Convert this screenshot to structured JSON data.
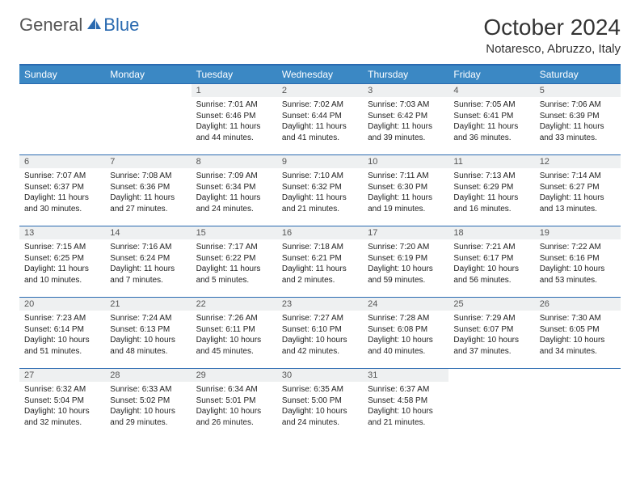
{
  "brand": {
    "word1": "General",
    "word2": "Blue"
  },
  "title": {
    "month": "October 2024",
    "location": "Notaresco, Abruzzo, Italy"
  },
  "colors": {
    "header_bg": "#3b88c4",
    "header_border": "#2a6ab0",
    "row_border": "#2a6ab0",
    "daynum_bg": "#eef0f1",
    "brand_blue": "#2a6ab0"
  },
  "weekdays": [
    "Sunday",
    "Monday",
    "Tuesday",
    "Wednesday",
    "Thursday",
    "Friday",
    "Saturday"
  ],
  "weeks": [
    [
      {
        "n": "",
        "sr": "",
        "ss": "",
        "dl": ""
      },
      {
        "n": "",
        "sr": "",
        "ss": "",
        "dl": ""
      },
      {
        "n": "1",
        "sr": "Sunrise: 7:01 AM",
        "ss": "Sunset: 6:46 PM",
        "dl": "Daylight: 11 hours and 44 minutes."
      },
      {
        "n": "2",
        "sr": "Sunrise: 7:02 AM",
        "ss": "Sunset: 6:44 PM",
        "dl": "Daylight: 11 hours and 41 minutes."
      },
      {
        "n": "3",
        "sr": "Sunrise: 7:03 AM",
        "ss": "Sunset: 6:42 PM",
        "dl": "Daylight: 11 hours and 39 minutes."
      },
      {
        "n": "4",
        "sr": "Sunrise: 7:05 AM",
        "ss": "Sunset: 6:41 PM",
        "dl": "Daylight: 11 hours and 36 minutes."
      },
      {
        "n": "5",
        "sr": "Sunrise: 7:06 AM",
        "ss": "Sunset: 6:39 PM",
        "dl": "Daylight: 11 hours and 33 minutes."
      }
    ],
    [
      {
        "n": "6",
        "sr": "Sunrise: 7:07 AM",
        "ss": "Sunset: 6:37 PM",
        "dl": "Daylight: 11 hours and 30 minutes."
      },
      {
        "n": "7",
        "sr": "Sunrise: 7:08 AM",
        "ss": "Sunset: 6:36 PM",
        "dl": "Daylight: 11 hours and 27 minutes."
      },
      {
        "n": "8",
        "sr": "Sunrise: 7:09 AM",
        "ss": "Sunset: 6:34 PM",
        "dl": "Daylight: 11 hours and 24 minutes."
      },
      {
        "n": "9",
        "sr": "Sunrise: 7:10 AM",
        "ss": "Sunset: 6:32 PM",
        "dl": "Daylight: 11 hours and 21 minutes."
      },
      {
        "n": "10",
        "sr": "Sunrise: 7:11 AM",
        "ss": "Sunset: 6:30 PM",
        "dl": "Daylight: 11 hours and 19 minutes."
      },
      {
        "n": "11",
        "sr": "Sunrise: 7:13 AM",
        "ss": "Sunset: 6:29 PM",
        "dl": "Daylight: 11 hours and 16 minutes."
      },
      {
        "n": "12",
        "sr": "Sunrise: 7:14 AM",
        "ss": "Sunset: 6:27 PM",
        "dl": "Daylight: 11 hours and 13 minutes."
      }
    ],
    [
      {
        "n": "13",
        "sr": "Sunrise: 7:15 AM",
        "ss": "Sunset: 6:25 PM",
        "dl": "Daylight: 11 hours and 10 minutes."
      },
      {
        "n": "14",
        "sr": "Sunrise: 7:16 AM",
        "ss": "Sunset: 6:24 PM",
        "dl": "Daylight: 11 hours and 7 minutes."
      },
      {
        "n": "15",
        "sr": "Sunrise: 7:17 AM",
        "ss": "Sunset: 6:22 PM",
        "dl": "Daylight: 11 hours and 5 minutes."
      },
      {
        "n": "16",
        "sr": "Sunrise: 7:18 AM",
        "ss": "Sunset: 6:21 PM",
        "dl": "Daylight: 11 hours and 2 minutes."
      },
      {
        "n": "17",
        "sr": "Sunrise: 7:20 AM",
        "ss": "Sunset: 6:19 PM",
        "dl": "Daylight: 10 hours and 59 minutes."
      },
      {
        "n": "18",
        "sr": "Sunrise: 7:21 AM",
        "ss": "Sunset: 6:17 PM",
        "dl": "Daylight: 10 hours and 56 minutes."
      },
      {
        "n": "19",
        "sr": "Sunrise: 7:22 AM",
        "ss": "Sunset: 6:16 PM",
        "dl": "Daylight: 10 hours and 53 minutes."
      }
    ],
    [
      {
        "n": "20",
        "sr": "Sunrise: 7:23 AM",
        "ss": "Sunset: 6:14 PM",
        "dl": "Daylight: 10 hours and 51 minutes."
      },
      {
        "n": "21",
        "sr": "Sunrise: 7:24 AM",
        "ss": "Sunset: 6:13 PM",
        "dl": "Daylight: 10 hours and 48 minutes."
      },
      {
        "n": "22",
        "sr": "Sunrise: 7:26 AM",
        "ss": "Sunset: 6:11 PM",
        "dl": "Daylight: 10 hours and 45 minutes."
      },
      {
        "n": "23",
        "sr": "Sunrise: 7:27 AM",
        "ss": "Sunset: 6:10 PM",
        "dl": "Daylight: 10 hours and 42 minutes."
      },
      {
        "n": "24",
        "sr": "Sunrise: 7:28 AM",
        "ss": "Sunset: 6:08 PM",
        "dl": "Daylight: 10 hours and 40 minutes."
      },
      {
        "n": "25",
        "sr": "Sunrise: 7:29 AM",
        "ss": "Sunset: 6:07 PM",
        "dl": "Daylight: 10 hours and 37 minutes."
      },
      {
        "n": "26",
        "sr": "Sunrise: 7:30 AM",
        "ss": "Sunset: 6:05 PM",
        "dl": "Daylight: 10 hours and 34 minutes."
      }
    ],
    [
      {
        "n": "27",
        "sr": "Sunrise: 6:32 AM",
        "ss": "Sunset: 5:04 PM",
        "dl": "Daylight: 10 hours and 32 minutes."
      },
      {
        "n": "28",
        "sr": "Sunrise: 6:33 AM",
        "ss": "Sunset: 5:02 PM",
        "dl": "Daylight: 10 hours and 29 minutes."
      },
      {
        "n": "29",
        "sr": "Sunrise: 6:34 AM",
        "ss": "Sunset: 5:01 PM",
        "dl": "Daylight: 10 hours and 26 minutes."
      },
      {
        "n": "30",
        "sr": "Sunrise: 6:35 AM",
        "ss": "Sunset: 5:00 PM",
        "dl": "Daylight: 10 hours and 24 minutes."
      },
      {
        "n": "31",
        "sr": "Sunrise: 6:37 AM",
        "ss": "Sunset: 4:58 PM",
        "dl": "Daylight: 10 hours and 21 minutes."
      },
      {
        "n": "",
        "sr": "",
        "ss": "",
        "dl": ""
      },
      {
        "n": "",
        "sr": "",
        "ss": "",
        "dl": ""
      }
    ]
  ]
}
